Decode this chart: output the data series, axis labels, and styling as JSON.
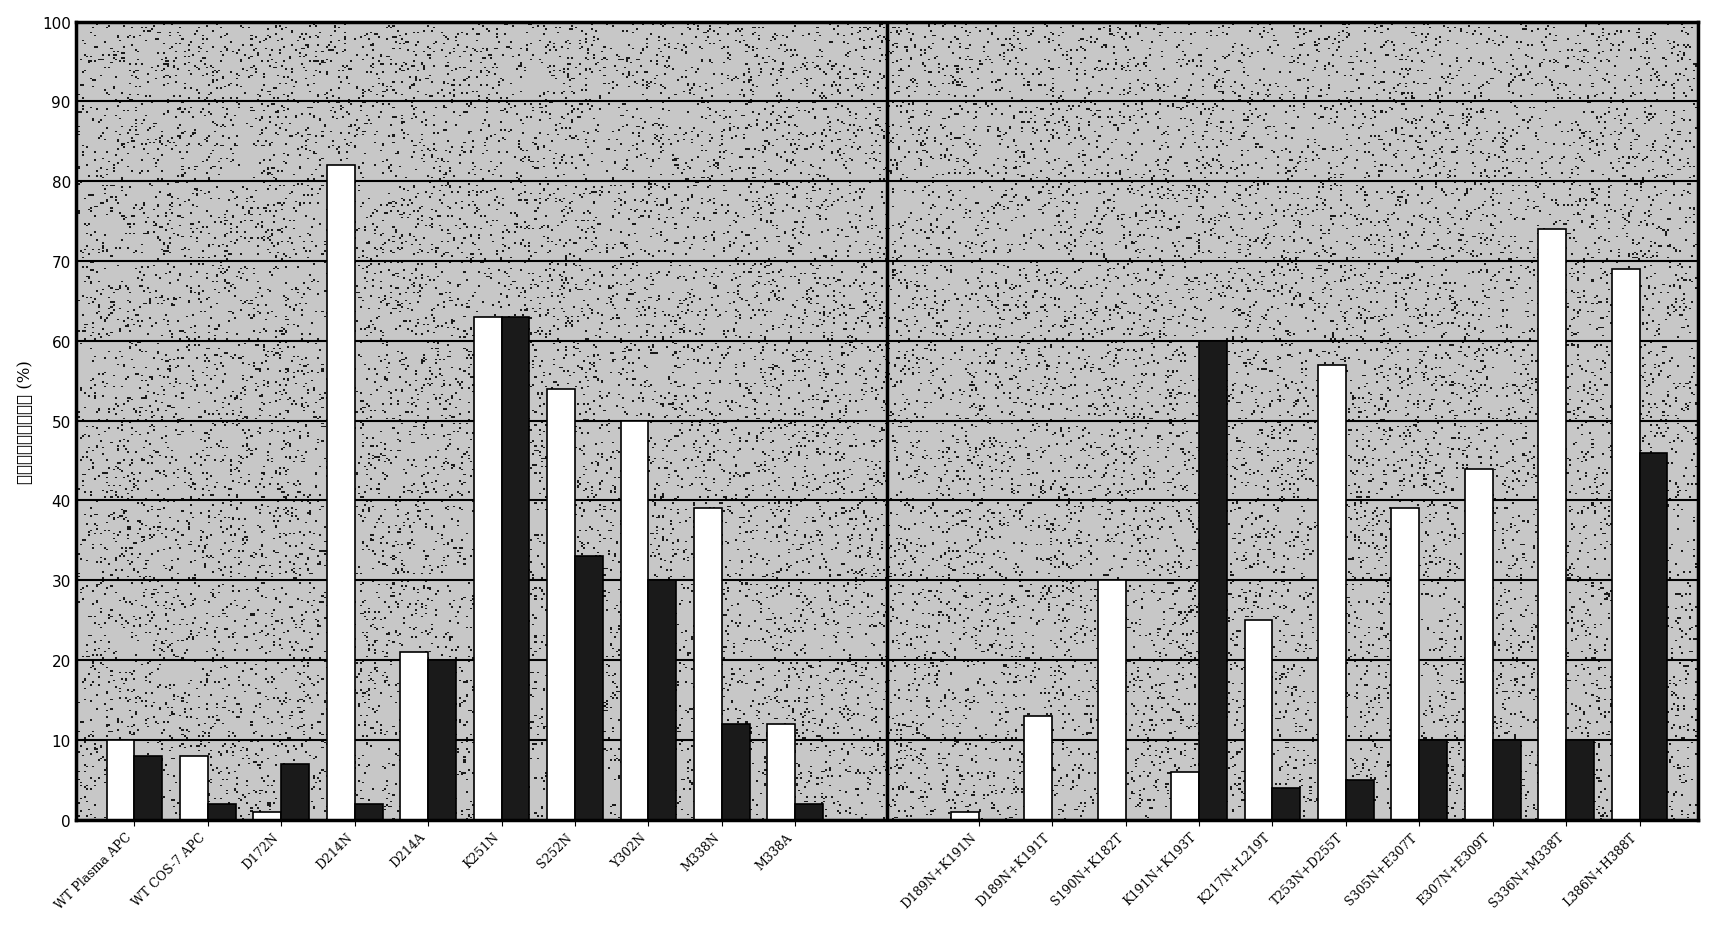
{
  "categories": [
    "WT Plasma APC",
    "WT COS-7 APC",
    "D172N",
    "D214N",
    "D214A",
    "K251N",
    "S252N",
    "Y302N",
    "M338N",
    "M338A",
    "D189N+K191N",
    "D189N+K191T",
    "S190N+K182T",
    "K191N+K193T",
    "K217N+L219T",
    "T253N+D255T",
    "S305N+E307T",
    "E307N+E309T",
    "S336N+M338T",
    "L386N+H388T"
  ],
  "bar1_values": [
    10,
    8,
    1,
    82,
    21,
    63,
    54,
    50,
    39,
    12,
    1,
    13,
    30,
    6,
    25,
    57,
    39,
    44,
    74,
    69
  ],
  "bar2_values": [
    8,
    2,
    7,
    2,
    20,
    63,
    33,
    30,
    12,
    2,
    0,
    0,
    0,
    60,
    4,
    5,
    10,
    10,
    10,
    46
  ],
  "separator_after": 9,
  "bar1_color": "#ffffff",
  "bar2_color": "#1a1a1a",
  "bar_edge_color": "#000000",
  "ylabel": "残余的酰胺裂解活性 (%)",
  "ylim": [
    0,
    100
  ],
  "yticks": [
    0,
    10,
    20,
    30,
    40,
    50,
    60,
    70,
    80,
    90,
    100
  ],
  "bar_width": 0.38,
  "background_color": "#c8c8c8",
  "grid_color": "#000000",
  "figsize": [
    17.15,
    9.29
  ],
  "dpi": 100,
  "noise_density": 0.06,
  "noise_seed": 42
}
